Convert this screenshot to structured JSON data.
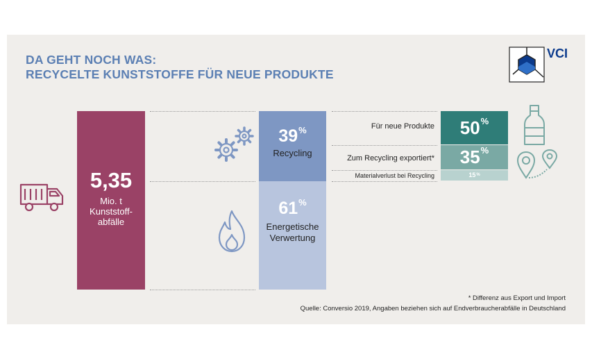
{
  "title": {
    "line1": "DA GEHT NOCH WAS:",
    "line2": "RECYCELTE KUNSTSTOFFE FÜR NEUE PRODUKTE"
  },
  "logo": {
    "text": "VCI"
  },
  "colors": {
    "background": "#f0eeeb",
    "title": "#5b7fb3",
    "total_bar": "#9a4266",
    "recycling_bar": "#7e97c3",
    "energy_bar": "#b8c5de",
    "new_products": "#2f7d78",
    "exported": "#7aa9a4",
    "material_loss": "#b8d2cf",
    "icon_blue": "#7e97c3",
    "icon_teal": "#5f8e8a",
    "icon_red": "#9a4266"
  },
  "icons": [
    "garbage-truck-icon",
    "gears-icon",
    "flame-icon",
    "bottle-icon",
    "location-pins-icon"
  ],
  "total": {
    "value": "5,35",
    "unit_line1": "Mio. t",
    "unit_line2": "Kunststoff-",
    "unit_line3": "abfälle"
  },
  "recycling": {
    "pct": "39",
    "pct_sign": "%",
    "label": "Recycling"
  },
  "energy": {
    "pct": "61",
    "pct_sign": "%",
    "label_line1": "Energetische",
    "label_line2": "Verwertung"
  },
  "breakdown": [
    {
      "label": "Für neue Produkte",
      "pct": "50",
      "pct_sign": "%"
    },
    {
      "label": "Zum Recycling exportiert*",
      "pct": "35",
      "pct_sign": "%"
    },
    {
      "label": "Materialverlust bei Recycling",
      "pct": "15",
      "pct_sign": "%"
    }
  ],
  "footnotes": {
    "note": "* Differenz aus Export und Import",
    "source": "Quelle: Conversio 2019, Angaben beziehen sich auf Endverbraucherabfälle in Deutschland"
  },
  "chart_data": {
    "type": "bar",
    "total": {
      "value": 5.35,
      "unit": "Mio. t"
    },
    "split": {
      "categories": [
        "Recycling",
        "Energetische Verwertung"
      ],
      "values": [
        39,
        61
      ]
    },
    "recycling_breakdown": {
      "categories": [
        "Für neue Produkte",
        "Zum Recycling exportiert*",
        "Materialverlust bei Recycling"
      ],
      "values": [
        50,
        35,
        15
      ]
    }
  }
}
